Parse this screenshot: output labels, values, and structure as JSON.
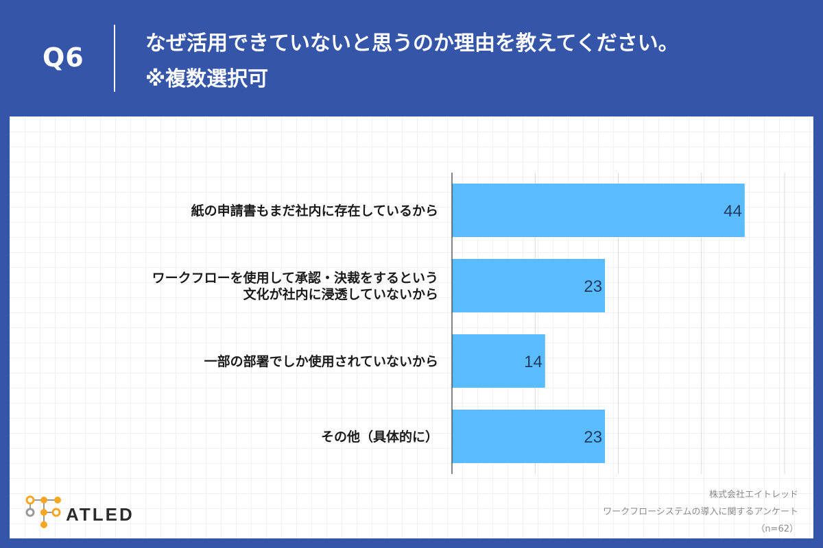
{
  "header": {
    "q_number": "Q6",
    "title_line1": "なぜ活用できていないと思うのか理由を教えてください。",
    "title_line2": "※複数選択可"
  },
  "chart_data": {
    "type": "bar",
    "orientation": "horizontal",
    "categories": [
      [
        "紙の申請書もまだ社内に存在しているから"
      ],
      [
        "ワークフローを使用して承認・決裁をするという",
        "文化が社内に浸透していないから"
      ],
      [
        "一部の部署でしか使用されていないから"
      ],
      [
        "その他（具体的に）"
      ]
    ],
    "values": [
      44,
      23,
      14,
      23
    ],
    "xlim": [
      0,
      50
    ],
    "gridlines": [
      0,
      12.5,
      25,
      37.5,
      50
    ],
    "bar_color": "#5bbcfd",
    "value_label_color": "#1e3a5f"
  },
  "logo": {
    "text": "ATLED"
  },
  "footer": {
    "company": "株式会社エイトレッド",
    "survey": "ワークフローシステムの導入に関するアンケート",
    "sample": "（n=62）"
  },
  "colors": {
    "header_bg": "#3556a8",
    "logo_accent": "#f5a623",
    "logo_grey": "#9a9a9a"
  }
}
